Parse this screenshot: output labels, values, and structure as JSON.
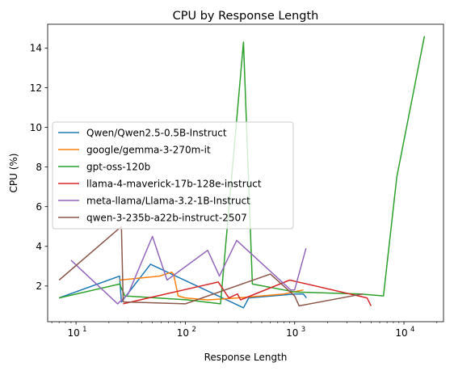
{
  "chart_data": {
    "type": "line",
    "title": "CPU by Response Length",
    "xlabel": "Response Length",
    "ylabel": "CPU (%)",
    "xscale": "log",
    "xlim": [
      5.5,
      23000
    ],
    "ylim": [
      0.2,
      15.2
    ],
    "xticks": [
      {
        "value": 10,
        "label": "10",
        "sup": "1"
      },
      {
        "value": 100,
        "label": "10",
        "sup": "2"
      },
      {
        "value": 1000,
        "label": "10",
        "sup": "3"
      },
      {
        "value": 10000,
        "label": "10",
        "sup": "4"
      }
    ],
    "yticks": [
      2,
      4,
      6,
      8,
      10,
      12,
      14
    ],
    "grid": false,
    "legend_position": "center-left",
    "series": [
      {
        "name": "Qwen/Qwen2.5-0.5B-Instruct",
        "color": "#1f77b4",
        "points": [
          [
            7,
            1.4
          ],
          [
            25,
            2.5
          ],
          [
            26,
            1.2
          ],
          [
            48,
            3.1
          ],
          [
            340,
            0.9
          ],
          [
            380,
            1.4
          ],
          [
            1000,
            1.6
          ],
          [
            1200,
            1.6
          ],
          [
            1280,
            1.4
          ]
        ]
      },
      {
        "name": "google/gemma-3-270m-it",
        "color": "#ff7f0e",
        "points": [
          [
            25,
            2.3
          ],
          [
            58,
            2.5
          ],
          [
            75,
            2.7
          ],
          [
            78,
            2.6
          ],
          [
            86,
            1.5
          ],
          [
            100,
            1.4
          ],
          [
            160,
            1.3
          ],
          [
            300,
            1.4
          ],
          [
            500,
            1.5
          ],
          [
            800,
            1.6
          ],
          [
            1200,
            1.8
          ]
        ]
      },
      {
        "name": "gpt-oss-120b",
        "color": "#2ca02c",
        "points": [
          [
            7,
            1.4
          ],
          [
            25,
            2.1
          ],
          [
            28,
            1.5
          ],
          [
            105,
            1.3
          ],
          [
            210,
            1.1
          ],
          [
            340,
            14.3
          ],
          [
            410,
            2.1
          ],
          [
            1000,
            1.7
          ],
          [
            4000,
            1.6
          ],
          [
            6500,
            1.5
          ],
          [
            8600,
            7.5
          ],
          [
            15400,
            14.6
          ]
        ]
      },
      {
        "name": "llama-4-maverick-17b-128e-instruct",
        "color": "#d62728",
        "points": [
          [
            27,
            1.1
          ],
          [
            46,
            1.4
          ],
          [
            200,
            2.2
          ],
          [
            250,
            1.4
          ],
          [
            300,
            1.6
          ],
          [
            320,
            1.3
          ],
          [
            900,
            2.3
          ],
          [
            4600,
            1.4
          ],
          [
            5000,
            1.0
          ]
        ]
      },
      {
        "name": "meta-llama/Llama-3.2-1B-Instruct",
        "color": "#9467bd",
        "points": [
          [
            9,
            3.3
          ],
          [
            24,
            1.1
          ],
          [
            30,
            1.6
          ],
          [
            50,
            4.5
          ],
          [
            68,
            2.3
          ],
          [
            160,
            3.8
          ],
          [
            205,
            2.5
          ],
          [
            295,
            4.3
          ],
          [
            920,
            1.8
          ],
          [
            1000,
            1.8
          ],
          [
            1270,
            3.9
          ]
        ]
      },
      {
        "name": "qwen-3-235b-a22b-instruct-2507",
        "color": "#8c564b",
        "points": [
          [
            7,
            2.3
          ],
          [
            26,
            5.0
          ],
          [
            27,
            1.2
          ],
          [
            100,
            1.1
          ],
          [
            600,
            2.6
          ],
          [
            1000,
            1.5
          ],
          [
            1100,
            1.0
          ],
          [
            4200,
            1.6
          ]
        ]
      }
    ]
  }
}
